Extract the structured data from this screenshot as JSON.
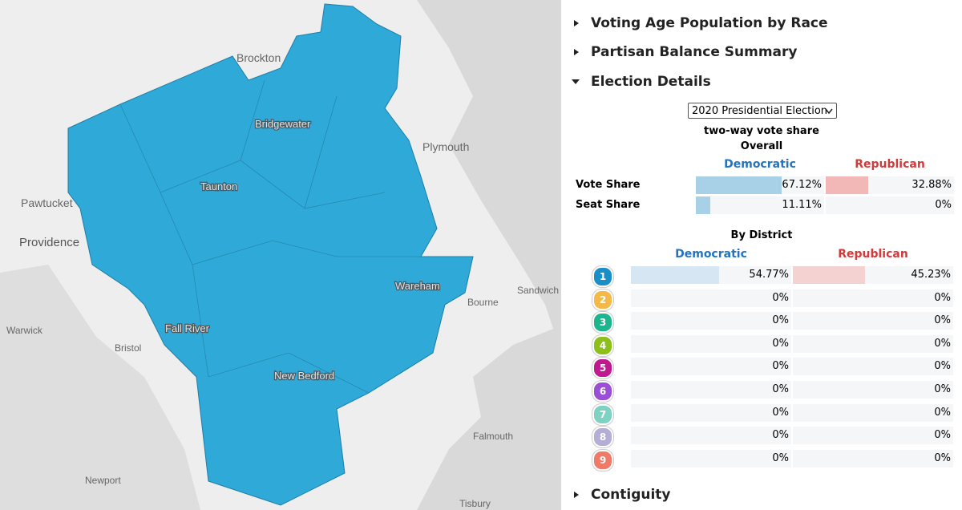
{
  "map": {
    "labels": [
      "Brockton",
      "Bridgewater",
      "Plymouth",
      "Taunton",
      "Pawtucket",
      "Providence",
      "Wareham",
      "Sandwich",
      "Bourne",
      "Warwick",
      "Bristol",
      "Fall River",
      "New Bedford",
      "Falmouth",
      "Newport",
      "Tisbury"
    ]
  },
  "sections": [
    "Voting Age Population by Race",
    "Partisan Balance Summary",
    "Election Details",
    "Contiguity"
  ],
  "election": {
    "select": "2020 Presidential Election",
    "subtitle": "two-way vote share",
    "overall": {
      "heading": "Overall",
      "columns": [
        "Democratic",
        "Republican"
      ],
      "rows": [
        {
          "label": "Vote Share",
          "values": [
            {
              "value": 67.12,
              "label": "67.12%"
            },
            {
              "value": 32.88,
              "label": "32.88%"
            }
          ]
        },
        {
          "label": "Seat Share",
          "values": [
            {
              "value": 11.11,
              "label": "11.11%"
            },
            {
              "value": 0,
              "label": "0%"
            }
          ]
        }
      ]
    },
    "by_district": {
      "heading": "By District",
      "columns": [
        "Democratic",
        "Republican"
      ],
      "districts": [
        {
          "id": "1",
          "color": "#1a8fc7",
          "values": [
            {
              "value": 54.77,
              "label": "54.77%"
            },
            {
              "value": 45.23,
              "label": "45.23%"
            }
          ]
        },
        {
          "id": "2",
          "color": "#f5b94a",
          "values": [
            {
              "value": 0,
              "label": "0%"
            },
            {
              "value": 0,
              "label": "0%"
            }
          ]
        },
        {
          "id": "3",
          "color": "#1cb58c",
          "values": [
            {
              "value": 0,
              "label": "0%"
            },
            {
              "value": 0,
              "label": "0%"
            }
          ]
        },
        {
          "id": "4",
          "color": "#8cbf1a",
          "values": [
            {
              "value": 0,
              "label": "0%"
            },
            {
              "value": 0,
              "label": "0%"
            }
          ]
        },
        {
          "id": "5",
          "color": "#c01a8f",
          "values": [
            {
              "value": 0,
              "label": "0%"
            },
            {
              "value": 0,
              "label": "0%"
            }
          ]
        },
        {
          "id": "6",
          "color": "#9b4fd6",
          "values": [
            {
              "value": 0,
              "label": "0%"
            },
            {
              "value": 0,
              "label": "0%"
            }
          ]
        },
        {
          "id": "7",
          "color": "#7fd1c1",
          "values": [
            {
              "value": 0,
              "label": "0%"
            },
            {
              "value": 0,
              "label": "0%"
            }
          ]
        },
        {
          "id": "8",
          "color": "#b4aed6",
          "values": [
            {
              "value": 0,
              "label": "0%"
            },
            {
              "value": 0,
              "label": "0%"
            }
          ]
        },
        {
          "id": "9",
          "color": "#f07a68",
          "values": [
            {
              "value": 0,
              "label": "0%"
            },
            {
              "value": 0,
              "label": "0%"
            }
          ]
        }
      ]
    }
  }
}
